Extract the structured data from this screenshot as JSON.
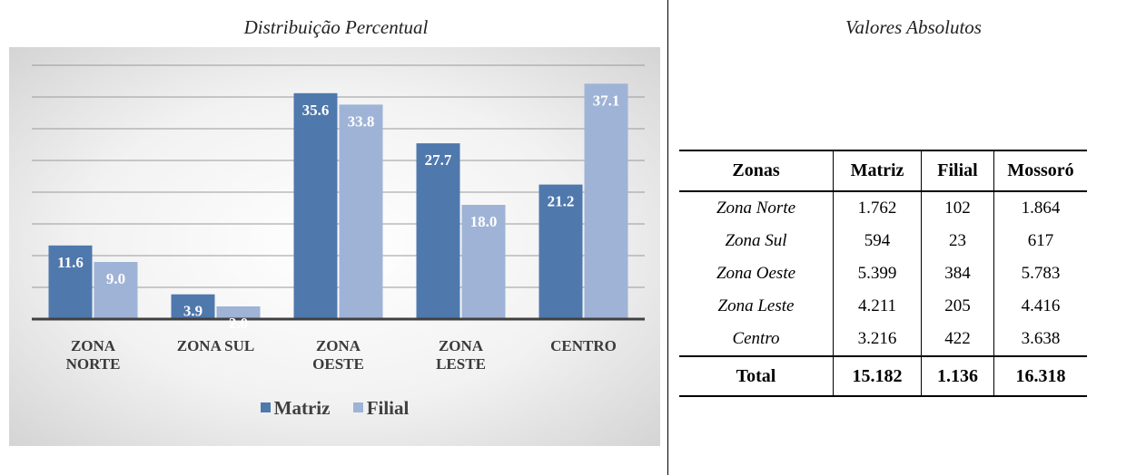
{
  "left_title": "Distribuição Percentual",
  "right_title": "Valores Absolutos",
  "colors": {
    "matriz": "#4f78ad",
    "filial": "#9fb3d6",
    "grid": "#9a9a9a",
    "axis": "#404040"
  },
  "chart_data": {
    "type": "bar",
    "title": "Distribuição Percentual",
    "categories": [
      [
        "ZONA",
        "NORTE"
      ],
      [
        "ZONA SUL"
      ],
      [
        "ZONA",
        "OESTE"
      ],
      [
        "ZONA",
        "LESTE"
      ],
      [
        "CENTRO"
      ]
    ],
    "series": [
      {
        "name": "Matriz",
        "values": [
          11.6,
          3.9,
          35.6,
          27.7,
          21.2
        ],
        "labels": [
          "11.6",
          "3.9",
          "35.6",
          "27.7",
          "21.2"
        ]
      },
      {
        "name": "Filial",
        "values": [
          9.0,
          2.0,
          33.8,
          18.0,
          37.1
        ],
        "labels": [
          "9.0",
          "2.0",
          "33.8",
          "18.0",
          "37.1"
        ]
      }
    ],
    "ylim": [
      0,
      40
    ],
    "grid": true,
    "legend": "bottom"
  },
  "table": {
    "headers": [
      "Zonas",
      "Matriz",
      "Filial",
      "Mossoró"
    ],
    "rows": [
      [
        "Zona Norte",
        "1.762",
        "102",
        "1.864"
      ],
      [
        "Zona Sul",
        "594",
        "23",
        "617"
      ],
      [
        "Zona Oeste",
        "5.399",
        "384",
        "5.783"
      ],
      [
        "Zona Leste",
        "4.211",
        "205",
        "4.416"
      ],
      [
        "Centro",
        "3.216",
        "422",
        "3.638"
      ]
    ],
    "total": [
      "Total",
      "15.182",
      "1.136",
      "16.318"
    ]
  }
}
